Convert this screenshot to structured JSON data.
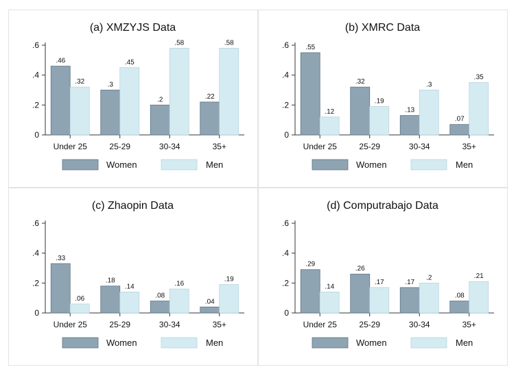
{
  "colors": {
    "women": "#8fa4b3",
    "men": "#d5ebf2",
    "women_stroke": "#5f7483",
    "men_stroke": "#b7d3de",
    "panel_border": "#e3e3e3",
    "axis": "#333333"
  },
  "legend_labels": {
    "women": "Women",
    "men": "Men"
  },
  "chart_data": [
    {
      "type": "bar",
      "title": "(a) XMZYJS Data",
      "categories": [
        "Under 25",
        "25-29",
        "30-34",
        "35+"
      ],
      "series": [
        {
          "name": "Women",
          "values": [
            0.46,
            0.3,
            0.2,
            0.22
          ],
          "labels": [
            ".46",
            ".3",
            ".2",
            ".22"
          ]
        },
        {
          "name": "Men",
          "values": [
            0.32,
            0.45,
            0.58,
            0.58
          ],
          "labels": [
            ".32",
            ".45",
            ".58",
            ".58"
          ]
        }
      ],
      "ylim": [
        0,
        0.6
      ],
      "yticks": [
        0,
        0.2,
        0.4,
        0.6
      ],
      "ytick_labels": [
        "0",
        ".2",
        ".4",
        ".6"
      ],
      "legend": "bottom"
    },
    {
      "type": "bar",
      "title": "(b) XMRC Data",
      "categories": [
        "Under 25",
        "25-29",
        "30-34",
        "35+"
      ],
      "series": [
        {
          "name": "Women",
          "values": [
            0.55,
            0.32,
            0.13,
            0.07
          ],
          "labels": [
            ".55",
            ".32",
            ".13",
            ".07"
          ]
        },
        {
          "name": "Men",
          "values": [
            0.12,
            0.19,
            0.3,
            0.35
          ],
          "labels": [
            ".12",
            ".19",
            ".3",
            ".35"
          ]
        }
      ],
      "ylim": [
        0,
        0.6
      ],
      "yticks": [
        0,
        0.2,
        0.4,
        0.6
      ],
      "ytick_labels": [
        "0",
        ".2",
        ".4",
        ".6"
      ],
      "legend": "bottom"
    },
    {
      "type": "bar",
      "title": "(c) Zhaopin Data",
      "categories": [
        "Under 25",
        "25-29",
        "30-34",
        "35+"
      ],
      "series": [
        {
          "name": "Women",
          "values": [
            0.33,
            0.18,
            0.08,
            0.04
          ],
          "labels": [
            ".33",
            ".18",
            ".08",
            ".04"
          ]
        },
        {
          "name": "Men",
          "values": [
            0.06,
            0.14,
            0.16,
            0.19
          ],
          "labels": [
            ".06",
            ".14",
            ".16",
            ".19"
          ]
        }
      ],
      "ylim": [
        0,
        0.6
      ],
      "yticks": [
        0,
        0.2,
        0.4,
        0.6
      ],
      "ytick_labels": [
        "0",
        ".2",
        ".4",
        ".6"
      ],
      "legend": "bottom"
    },
    {
      "type": "bar",
      "title": "(d) Computrabajo Data",
      "categories": [
        "Under 25",
        "25-29",
        "30-34",
        "35+"
      ],
      "series": [
        {
          "name": "Women",
          "values": [
            0.29,
            0.26,
            0.17,
            0.08
          ],
          "labels": [
            ".29",
            ".26",
            ".17",
            ".08"
          ]
        },
        {
          "name": "Men",
          "values": [
            0.14,
            0.17,
            0.2,
            0.21
          ],
          "labels": [
            ".14",
            ".17",
            ".2",
            ".21"
          ]
        }
      ],
      "ylim": [
        0,
        0.6
      ],
      "yticks": [
        0,
        0.2,
        0.4,
        0.6
      ],
      "ytick_labels": [
        "0",
        ".2",
        ".4",
        ".6"
      ],
      "legend": "bottom"
    }
  ]
}
